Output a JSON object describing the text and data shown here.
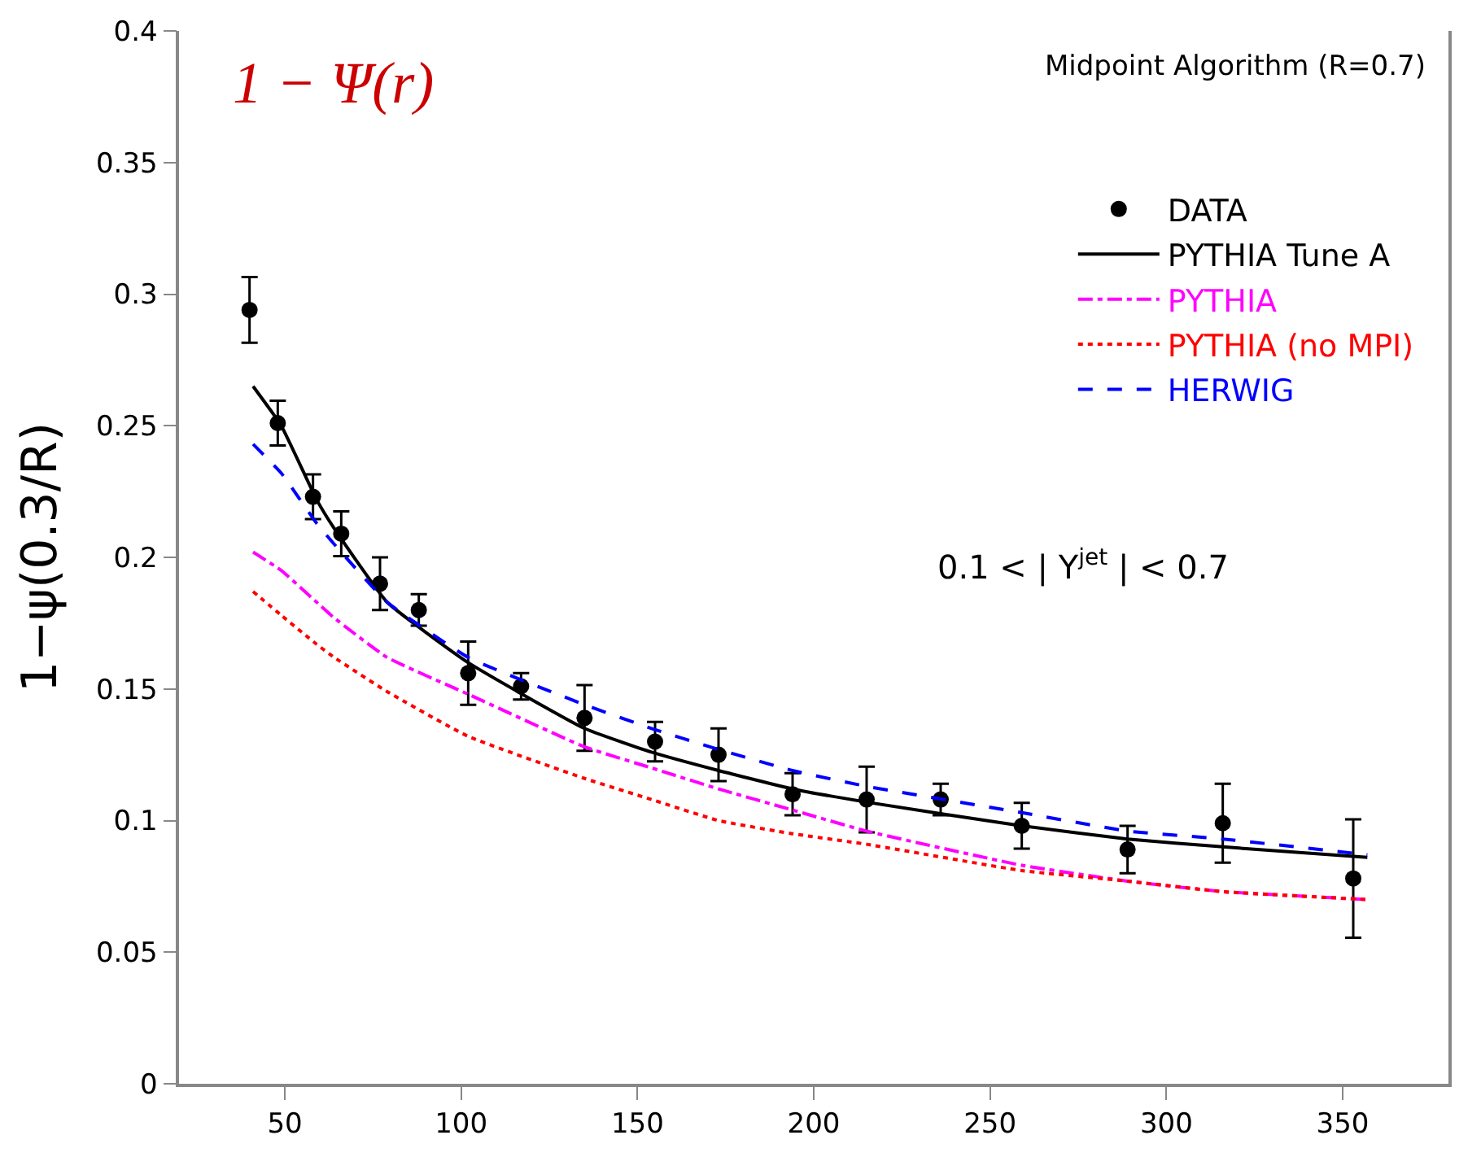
{
  "chart_data": {
    "type": "line",
    "ylabel": "1−ψ(0.3/R)",
    "annotations": [
      "1 − Ψ(r)",
      "Midpoint Algorithm (R=0.7)",
      "0.1 < | Y$^{jet}$ | < 0.7"
    ],
    "xlim": [
      20,
      380
    ],
    "xticks": [
      50,
      100,
      150,
      200,
      250,
      300,
      350
    ],
    "ylim": [
      0,
      0.4
    ],
    "yticks": [
      0,
      0.05,
      0.1,
      0.15,
      0.2,
      0.25,
      0.3,
      0.35,
      0.4
    ],
    "legend": "top right",
    "series": [
      {
        "name": "DATA",
        "type": "scatter",
        "marker": "circle",
        "color": "#000000",
        "x": [
          40,
          48,
          58,
          66,
          77,
          88,
          102,
          117,
          135,
          155,
          173,
          194,
          215,
          236,
          259,
          289,
          316,
          353
        ],
        "values": [
          0.294,
          0.251,
          0.223,
          0.209,
          0.19,
          0.18,
          0.156,
          0.151,
          0.139,
          0.13,
          0.125,
          0.11,
          0.108,
          0.108,
          0.098,
          0.089,
          0.099,
          0.078
        ],
        "errors": [
          0.0125,
          0.0085,
          0.0085,
          0.0085,
          0.01,
          0.006,
          0.012,
          0.005,
          0.0125,
          0.0075,
          0.01,
          0.008,
          0.0125,
          0.006,
          0.0087,
          0.009,
          0.015,
          0.0225
        ]
      },
      {
        "name": "PYTHIA Tune A",
        "line_style": "solid",
        "color": "#000000",
        "x": [
          41,
          49,
          59,
          64,
          79,
          102,
          135,
          154,
          173,
          194,
          215,
          259,
          289,
          316,
          357
        ],
        "values": [
          0.265,
          0.25,
          0.222,
          0.211,
          0.183,
          0.16,
          0.135,
          0.126,
          0.119,
          0.112,
          0.107,
          0.098,
          0.093,
          0.09,
          0.086
        ]
      },
      {
        "name": "PYTHIA",
        "line_style": "dashdot",
        "color": "#ff00ff",
        "x": [
          41,
          49,
          59,
          64,
          79,
          102,
          135,
          154,
          173,
          194,
          215,
          259,
          289,
          316,
          357
        ],
        "values": [
          0.202,
          0.195,
          0.183,
          0.177,
          0.162,
          0.148,
          0.128,
          0.12,
          0.112,
          0.104,
          0.096,
          0.083,
          0.077,
          0.073,
          0.07
        ]
      },
      {
        "name": "PYTHIA (no MPI)",
        "line_style": "dotted",
        "color": "#ff0000",
        "x": [
          41,
          49,
          59,
          64,
          79,
          102,
          135,
          154,
          173,
          194,
          215,
          259,
          289,
          316,
          357
        ],
        "values": [
          0.187,
          0.178,
          0.167,
          0.162,
          0.149,
          0.132,
          0.116,
          0.108,
          0.1,
          0.095,
          0.091,
          0.081,
          0.077,
          0.073,
          0.07
        ]
      },
      {
        "name": "HERWIG",
        "line_style": "dashed",
        "color": "#0000ff",
        "x": [
          41,
          49,
          59,
          64,
          79,
          102,
          135,
          154,
          173,
          194,
          215,
          259,
          289,
          316,
          357
        ],
        "values": [
          0.243,
          0.232,
          0.213,
          0.205,
          0.183,
          0.162,
          0.144,
          0.135,
          0.127,
          0.119,
          0.113,
          0.103,
          0.096,
          0.093,
          0.087
        ]
      }
    ]
  }
}
